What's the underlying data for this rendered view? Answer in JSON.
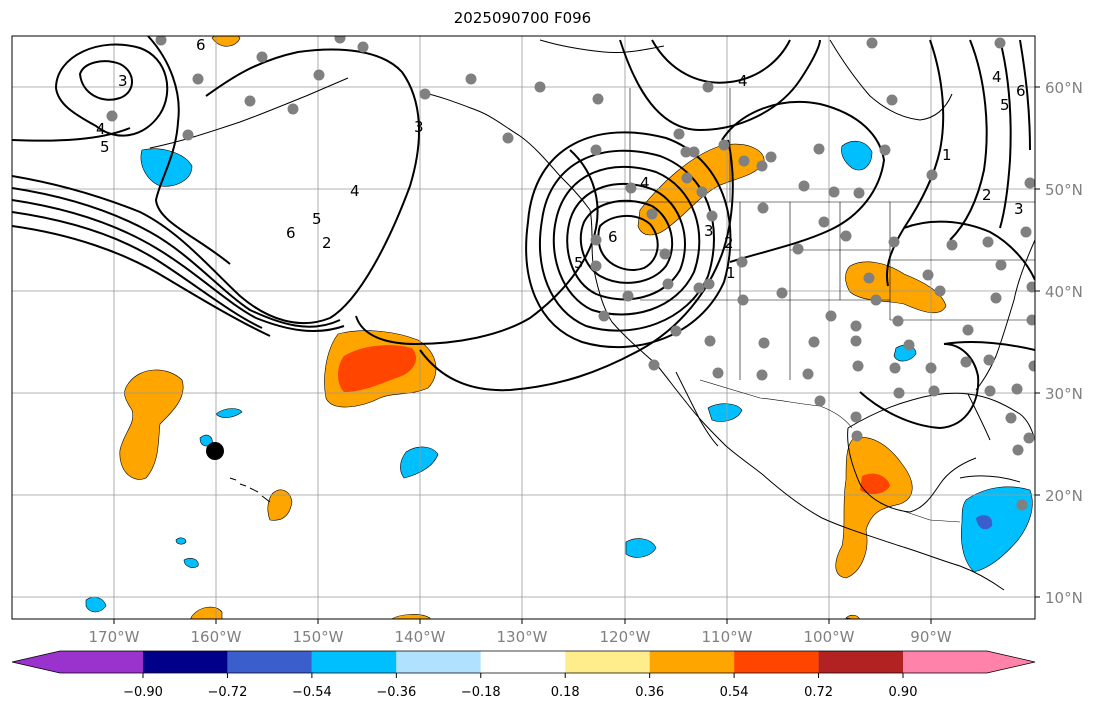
{
  "title": "2025090700 F096",
  "lat_labels": [
    "60°N",
    "50°N",
    "40°N",
    "30°N",
    "20°N",
    "10°N"
  ],
  "lon_labels": [
    "170°W",
    "160°W",
    "150°W",
    "140°W",
    "130°W",
    "120°W",
    "110°W",
    "100°W",
    "90°W"
  ],
  "colorbar": {
    "ticks": [
      "−0.90",
      "−0.72",
      "−0.54",
      "−0.36",
      "−0.18",
      "0.18",
      "0.36",
      "0.54",
      "0.72",
      "0.90"
    ],
    "colors": [
      "#9a32cd",
      "#00008b",
      "#3a5fcd",
      "#00bfff",
      "#b0e2ff",
      "#ffffff",
      "#ffec8b",
      "#ffa500",
      "#ff4500",
      "#b22222",
      "#ff82ab"
    ]
  },
  "contour_labels": [
    "3",
    "4",
    "5",
    "6",
    "2",
    "4",
    "5",
    "6",
    "3",
    "4",
    "5",
    "6",
    "3",
    "2",
    "1",
    "4",
    "1",
    "2",
    "3",
    "4",
    "5",
    "6"
  ]
}
